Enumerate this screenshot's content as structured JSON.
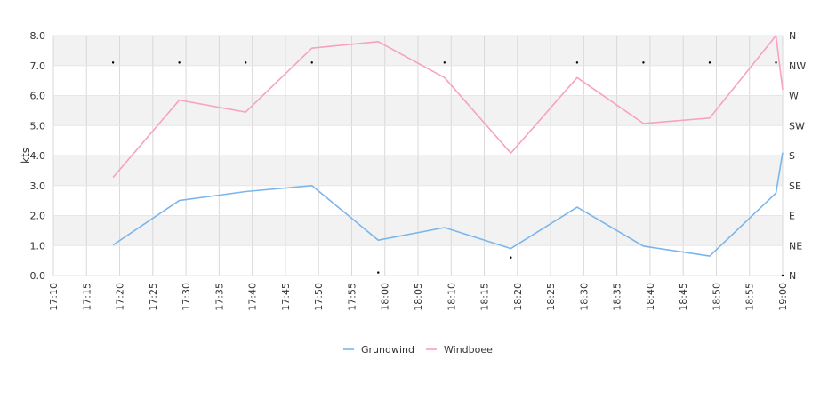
{
  "chart_data": {
    "type": "line",
    "ylabel": "kts",
    "ylim": [
      0,
      8
    ],
    "y_ticks": [
      "0.0",
      "1.0",
      "2.0",
      "3.0",
      "4.0",
      "5.0",
      "6.0",
      "7.0",
      "8.0"
    ],
    "x_ticks": [
      "17:10",
      "17:15",
      "17:20",
      "17:25",
      "17:30",
      "17:35",
      "17:40",
      "17:45",
      "17:50",
      "17:55",
      "18:00",
      "18:05",
      "18:10",
      "18:15",
      "18:20",
      "18:25",
      "18:30",
      "18:35",
      "18:40",
      "18:45",
      "18:50",
      "18:55",
      "19:00"
    ],
    "xlim": [
      "17:10",
      "19:00"
    ],
    "right_axis": {
      "ticks": [
        {
          "label": "N",
          "y": 0
        },
        {
          "label": "NE",
          "y": 1
        },
        {
          "label": "E",
          "y": 2
        },
        {
          "label": "SE",
          "y": 3
        },
        {
          "label": "S",
          "y": 4
        },
        {
          "label": "SW",
          "y": 5
        },
        {
          "label": "W",
          "y": 6
        },
        {
          "label": "NW",
          "y": 7
        },
        {
          "label": "N",
          "y": 8
        }
      ]
    },
    "grid": true,
    "legend_position": "bottom-center",
    "series": [
      {
        "name": "Grundwind",
        "color": "#7cb5ec",
        "points": [
          {
            "x": "17:19",
            "y": 1.02
          },
          {
            "x": "17:29",
            "y": 2.5
          },
          {
            "x": "17:39",
            "y": 2.8
          },
          {
            "x": "17:49",
            "y": 3.0
          },
          {
            "x": "17:59",
            "y": 1.18
          },
          {
            "x": "18:09",
            "y": 1.6
          },
          {
            "x": "18:19",
            "y": 0.9
          },
          {
            "x": "18:29",
            "y": 2.28
          },
          {
            "x": "18:39",
            "y": 0.98
          },
          {
            "x": "18:49",
            "y": 0.65
          },
          {
            "x": "18:59",
            "y": 2.75
          },
          {
            "x": "19:00",
            "y": 4.1
          }
        ]
      },
      {
        "name": "Windboee",
        "color": "#f7a1c4",
        "points": [
          {
            "x": "17:19",
            "y": 3.27
          },
          {
            "x": "17:29",
            "y": 5.85
          },
          {
            "x": "17:39",
            "y": 5.45
          },
          {
            "x": "17:49",
            "y": 7.58
          },
          {
            "x": "17:59",
            "y": 7.8
          },
          {
            "x": "18:09",
            "y": 6.6
          },
          {
            "x": "18:19",
            "y": 4.08
          },
          {
            "x": "18:29",
            "y": 6.6
          },
          {
            "x": "18:39",
            "y": 5.07
          },
          {
            "x": "18:49",
            "y": 5.25
          },
          {
            "x": "18:59",
            "y": 8.0
          },
          {
            "x": "19:00",
            "y": 6.2
          }
        ]
      },
      {
        "name": "",
        "type": "scatter",
        "color": "#000000",
        "points": [
          {
            "x": "17:19",
            "y": 7.1
          },
          {
            "x": "17:29",
            "y": 7.1
          },
          {
            "x": "17:39",
            "y": 7.1
          },
          {
            "x": "17:49",
            "y": 7.1
          },
          {
            "x": "17:59",
            "y": 0.1
          },
          {
            "x": "18:09",
            "y": 7.1
          },
          {
            "x": "18:19",
            "y": 0.6
          },
          {
            "x": "18:29",
            "y": 7.1
          },
          {
            "x": "18:39",
            "y": 7.1
          },
          {
            "x": "18:49",
            "y": 7.1
          },
          {
            "x": "18:59",
            "y": 7.1
          },
          {
            "x": "19:00",
            "y": 0.0
          }
        ]
      }
    ]
  }
}
